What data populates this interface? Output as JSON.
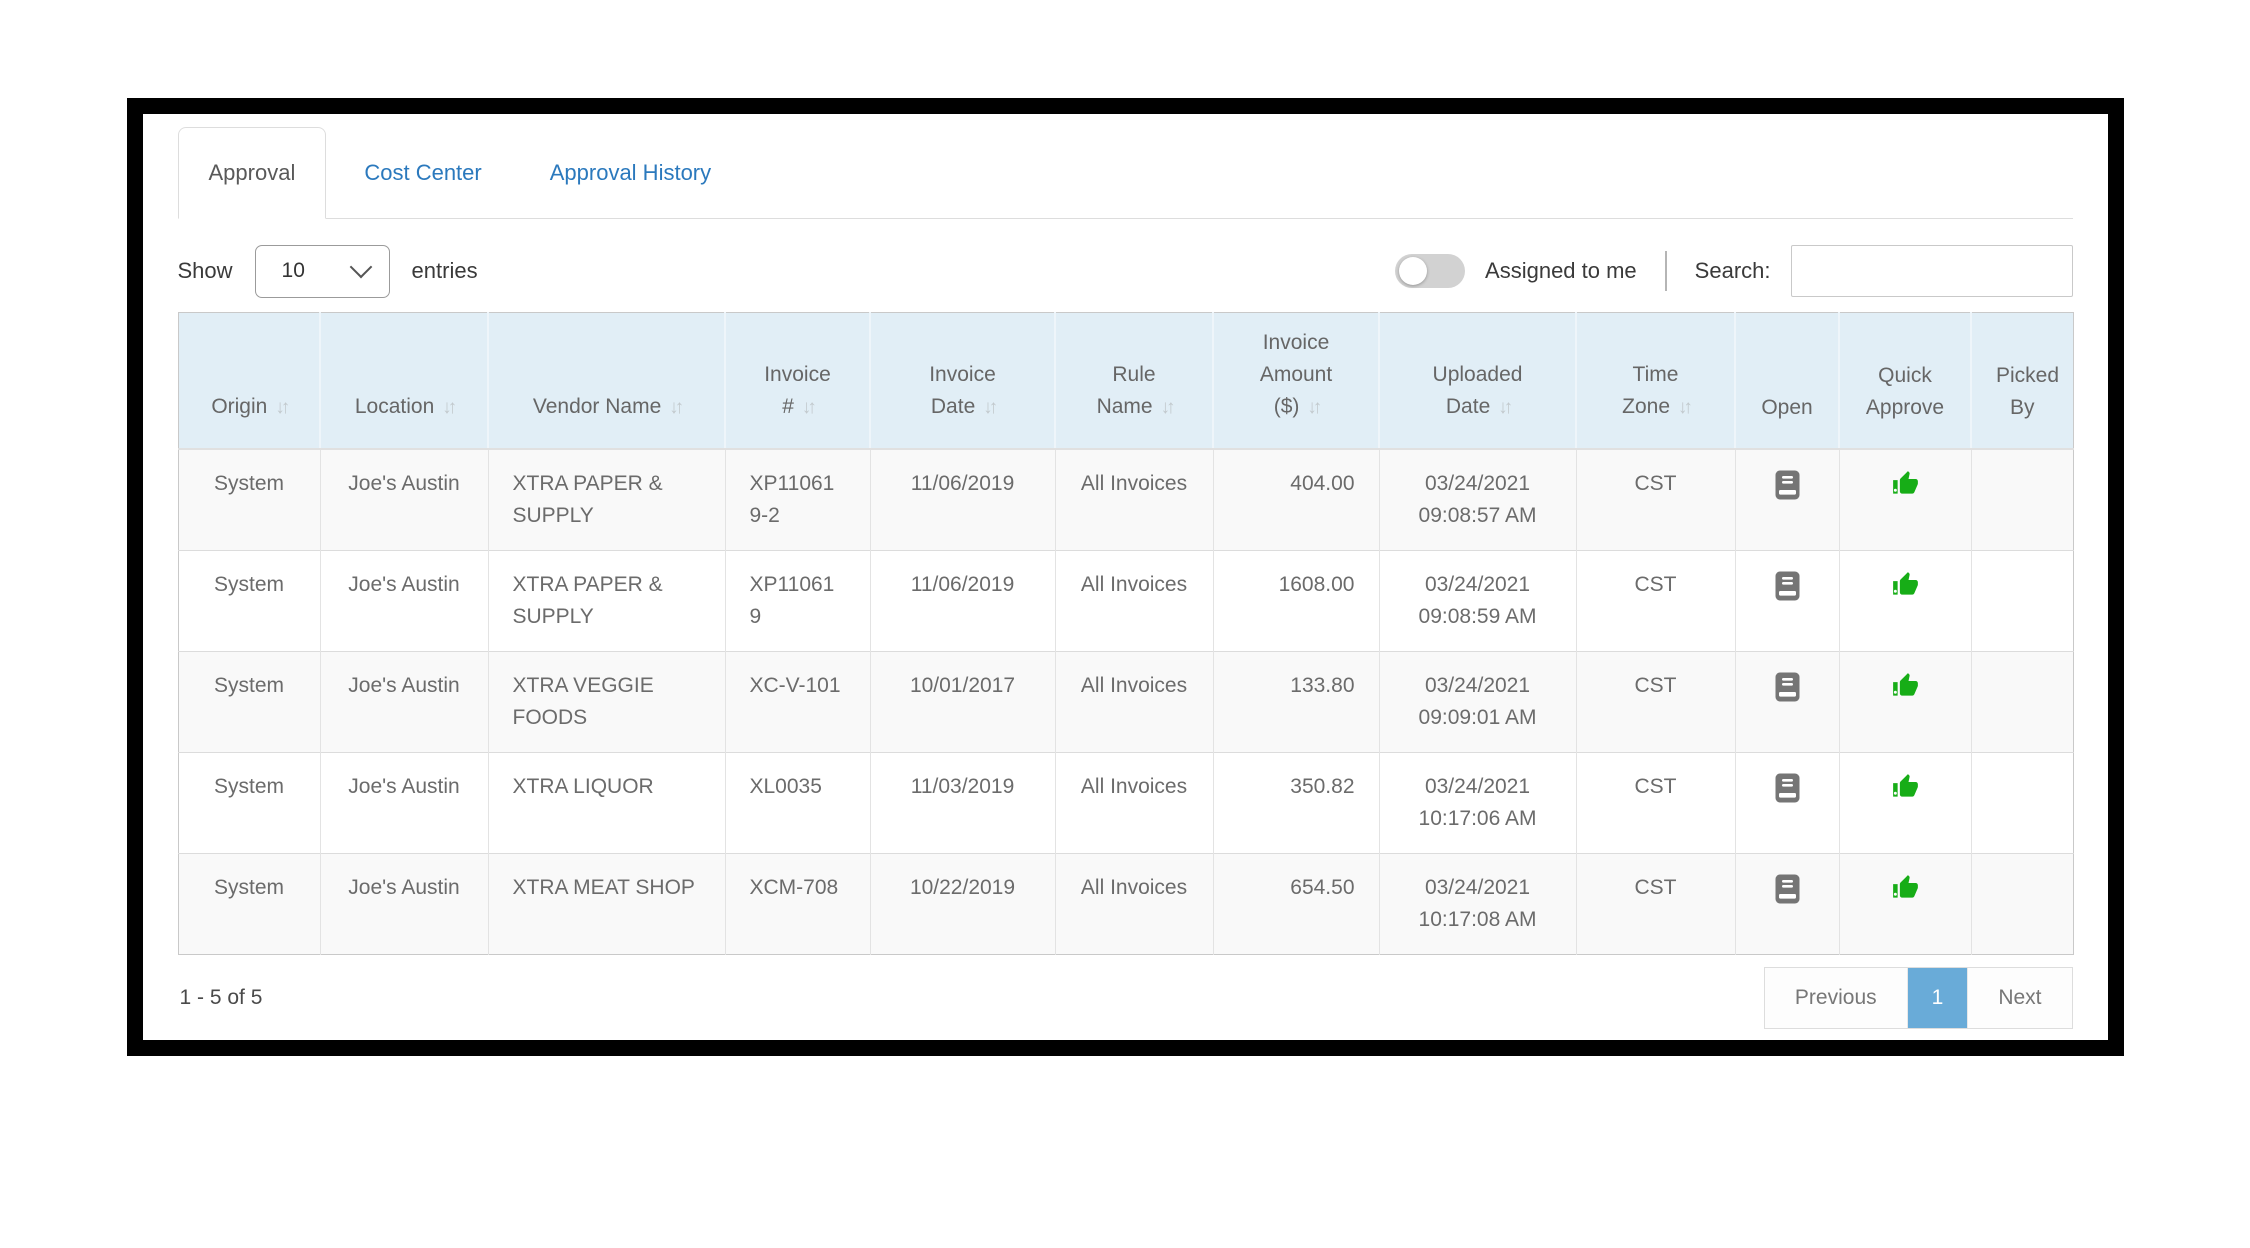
{
  "tabs": [
    {
      "label": "Approval",
      "active": true
    },
    {
      "label": "Cost Center",
      "active": false
    },
    {
      "label": "Approval History",
      "active": false
    }
  ],
  "controls": {
    "show_label": "Show",
    "page_size": "10",
    "entries_label": "entries",
    "assigned_label": "Assigned to me",
    "assigned_toggle_state": "off",
    "search_label": "Search:",
    "search_value": ""
  },
  "icons": {
    "sort_glyph": "↓↑",
    "sort": "sort-arrows-icon",
    "select_chevron": "chevron-down-icon",
    "open": "journal-icon",
    "quick_approve": "thumbs-up-icon"
  },
  "colors": {
    "tab_link_blue": "#2b79bd",
    "header_bg": "#e1eef6",
    "stripe_bg": "#f9f9f9",
    "thumb_green": "#17ad17",
    "journal_gray": "#757575",
    "active_page_blue": "#69abd8"
  },
  "table": {
    "columns": [
      {
        "key": "origin",
        "label": "Origin",
        "sortable": true
      },
      {
        "key": "location",
        "label": "Location",
        "sortable": true
      },
      {
        "key": "vendor_name",
        "label": "Vendor Name",
        "sortable": true
      },
      {
        "key": "invoice_no",
        "label": "Invoice #",
        "sortable": true
      },
      {
        "key": "invoice_date",
        "label": "Invoice Date",
        "sortable": true
      },
      {
        "key": "rule_name",
        "label": "Rule Name",
        "sortable": true
      },
      {
        "key": "invoice_amount",
        "label": "Invoice Amount ($)",
        "sortable": true
      },
      {
        "key": "uploaded_date",
        "label": "Uploaded Date",
        "sortable": true
      },
      {
        "key": "time_zone",
        "label": "Time Zone",
        "sortable": true
      },
      {
        "key": "open",
        "label": "Open",
        "sortable": false
      },
      {
        "key": "quick_approve",
        "label": "Quick Approve",
        "sortable": false
      },
      {
        "key": "picked_by",
        "label": "Picked By",
        "sortable": false
      }
    ],
    "rows": [
      {
        "origin": "System",
        "location": "Joe's Austin",
        "vendor_name": "XTRA PAPER & SUPPLY",
        "invoice_no": "XP110619-2",
        "invoice_date": "11/06/2019",
        "rule_name": "All Invoices",
        "invoice_amount": "404.00",
        "uploaded_date": "03/24/2021 09:08:57 AM",
        "time_zone": "CST",
        "open": "journal-icon",
        "quick_approve": "thumbs-up-icon",
        "picked_by": ""
      },
      {
        "origin": "System",
        "location": "Joe's Austin",
        "vendor_name": "XTRA PAPER & SUPPLY",
        "invoice_no": "XP110619",
        "invoice_date": "11/06/2019",
        "rule_name": "All Invoices",
        "invoice_amount": "1608.00",
        "uploaded_date": "03/24/2021 09:08:59 AM",
        "time_zone": "CST",
        "open": "journal-icon",
        "quick_approve": "thumbs-up-icon",
        "picked_by": ""
      },
      {
        "origin": "System",
        "location": "Joe's Austin",
        "vendor_name": "XTRA VEGGIE FOODS",
        "invoice_no": "XC-V-101",
        "invoice_date": "10/01/2017",
        "rule_name": "All Invoices",
        "invoice_amount": "133.80",
        "uploaded_date": "03/24/2021 09:09:01 AM",
        "time_zone": "CST",
        "open": "journal-icon",
        "quick_approve": "thumbs-up-icon",
        "picked_by": ""
      },
      {
        "origin": "System",
        "location": "Joe's Austin",
        "vendor_name": "XTRA LIQUOR",
        "invoice_no": "XL0035",
        "invoice_date": "11/03/2019",
        "rule_name": "All Invoices",
        "invoice_amount": "350.82",
        "uploaded_date": "03/24/2021 10:17:06 AM",
        "time_zone": "CST",
        "open": "journal-icon",
        "quick_approve": "thumbs-up-icon",
        "picked_by": ""
      },
      {
        "origin": "System",
        "location": "Joe's Austin",
        "vendor_name": "XTRA MEAT SHOP",
        "invoice_no": "XCM-708",
        "invoice_date": "10/22/2019",
        "rule_name": "All Invoices",
        "invoice_amount": "654.50",
        "uploaded_date": "03/24/2021 10:17:08 AM",
        "time_zone": "CST",
        "open": "journal-icon",
        "quick_approve": "thumbs-up-icon",
        "picked_by": ""
      }
    ]
  },
  "footer": {
    "range": "1 - 5 of 5",
    "previous": "Previous",
    "page": "1",
    "next": "Next"
  }
}
